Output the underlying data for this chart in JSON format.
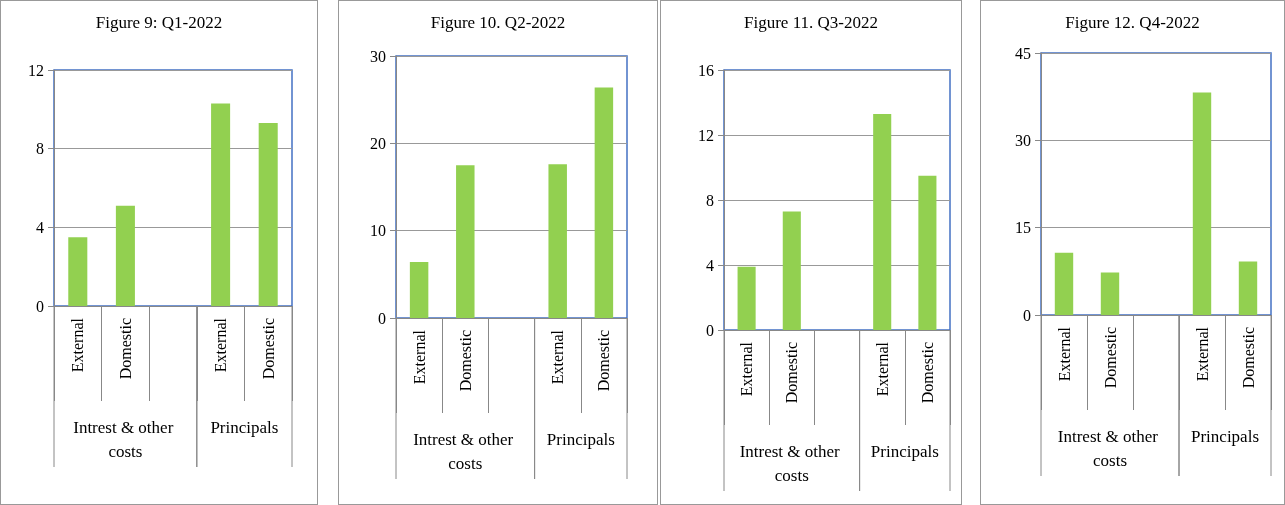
{
  "chart_data": [
    {
      "type": "bar",
      "title": "Figure 9: Q1-2022",
      "categories": [
        "External",
        "Domestic",
        null,
        "External",
        "Domestic"
      ],
      "annotations": [
        "Intrest & other costs",
        "Principals"
      ],
      "values": [
        3.5,
        5.1,
        null,
        10.3,
        9.3
      ],
      "color": "#92d050",
      "ylim": [
        0,
        12
      ],
      "yticks": [
        0,
        4,
        8,
        12
      ],
      "grid": "y"
    },
    {
      "type": "bar",
      "title": "Figure 10. Q2-2022",
      "categories": [
        "External",
        "Domestic",
        null,
        "External",
        "Domestic"
      ],
      "annotations": [
        "Intrest & other costs",
        "Principals"
      ],
      "values": [
        6.4,
        17.5,
        null,
        17.6,
        26.4
      ],
      "color": "#92d050",
      "ylim": [
        0,
        30
      ],
      "yticks": [
        0,
        10,
        20,
        30
      ],
      "grid": "y"
    },
    {
      "type": "bar",
      "title": "Figure 11. Q3-2022",
      "categories": [
        "External",
        "Domestic",
        null,
        "External",
        "Domestic"
      ],
      "annotations": [
        "Intrest & other costs",
        "Principals"
      ],
      "values": [
        3.9,
        7.3,
        null,
        13.3,
        9.5
      ],
      "color": "#92d050",
      "ylim": [
        0,
        16
      ],
      "yticks": [
        0,
        4,
        8,
        12,
        16
      ],
      "grid": "y"
    },
    {
      "type": "bar",
      "title": "Figure 12. Q4-2022",
      "categories": [
        "External",
        "Domestic",
        null,
        "External",
        "Domestic"
      ],
      "annotations": [
        "Intrest & other costs",
        "Principals"
      ],
      "values": [
        10.7,
        7.3,
        null,
        38.2,
        9.2
      ],
      "color": "#92d050",
      "ylim": [
        0,
        45
      ],
      "yticks": [
        0,
        15,
        30,
        45
      ],
      "grid": "y"
    }
  ]
}
